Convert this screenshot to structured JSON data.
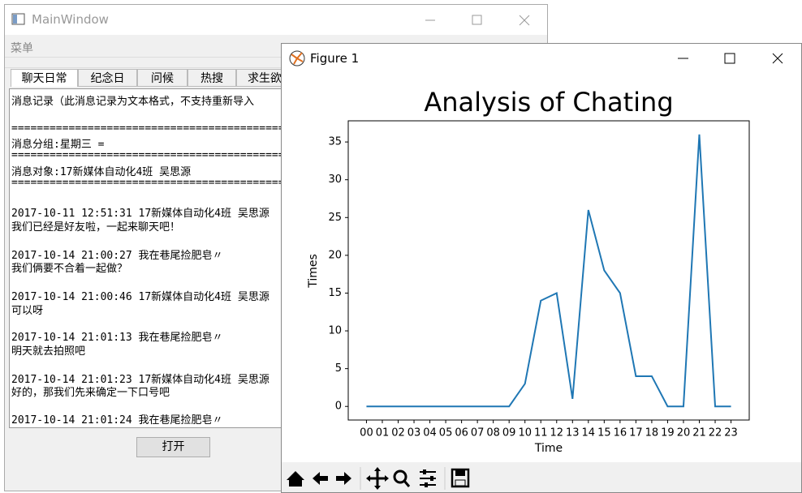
{
  "main_window": {
    "title": "MainWindow",
    "menu": "菜单",
    "tabs": [
      "聊天日常",
      "纪念日",
      "问候",
      "热搜",
      "求生欲"
    ],
    "log_lines": [
      "消息记录（此消息记录为文本格式，不支持重新导入",
      "================================================================",
      "消息分组:星期三  =",
      "================================================================",
      "消息对象:17新媒体自动化4班 吴思源",
      "================================================================",
      "2017-10-11 12:51:31 17新媒体自动化4班 吴思源",
      "我们已经是好友啦，一起来聊天吧！",
      "2017-10-14 21:00:27 我在巷尾捡肥皂〃",
      "我们俩要不合着一起做？",
      "2017-10-14 21:00:46 17新媒体自动化4班 吴思源",
      "可以呀",
      "2017-10-14 21:01:13 我在巷尾捡肥皂〃",
      "明天就去拍照吧",
      "2017-10-14 21:01:23 17新媒体自动化4班 吴思源",
      "好的，那我们先来确定一下口号吧",
      "2017-10-14 21:01:24 我在巷尾捡肥皂〃"
    ],
    "button": "打开"
  },
  "figure_window": {
    "title": "Figure 1"
  },
  "chart_data": {
    "type": "line",
    "title": "Analysis of Chating",
    "x_label": "Time",
    "y_label": "Times",
    "categories": [
      "00",
      "01",
      "02",
      "03",
      "04",
      "05",
      "06",
      "07",
      "08",
      "09",
      "10",
      "11",
      "12",
      "13",
      "14",
      "15",
      "16",
      "17",
      "18",
      "19",
      "20",
      "21",
      "22",
      "23"
    ],
    "values": [
      0,
      0,
      0,
      0,
      0,
      0,
      0,
      0,
      0,
      0,
      3,
      14,
      15,
      1,
      26,
      18,
      15,
      4,
      4,
      0,
      0,
      36,
      0,
      0
    ],
    "color": "#1f77b4",
    "ylim": [
      -1.8,
      37.8
    ],
    "yticks": [
      0,
      5,
      10,
      15,
      20,
      25,
      30,
      35
    ]
  }
}
